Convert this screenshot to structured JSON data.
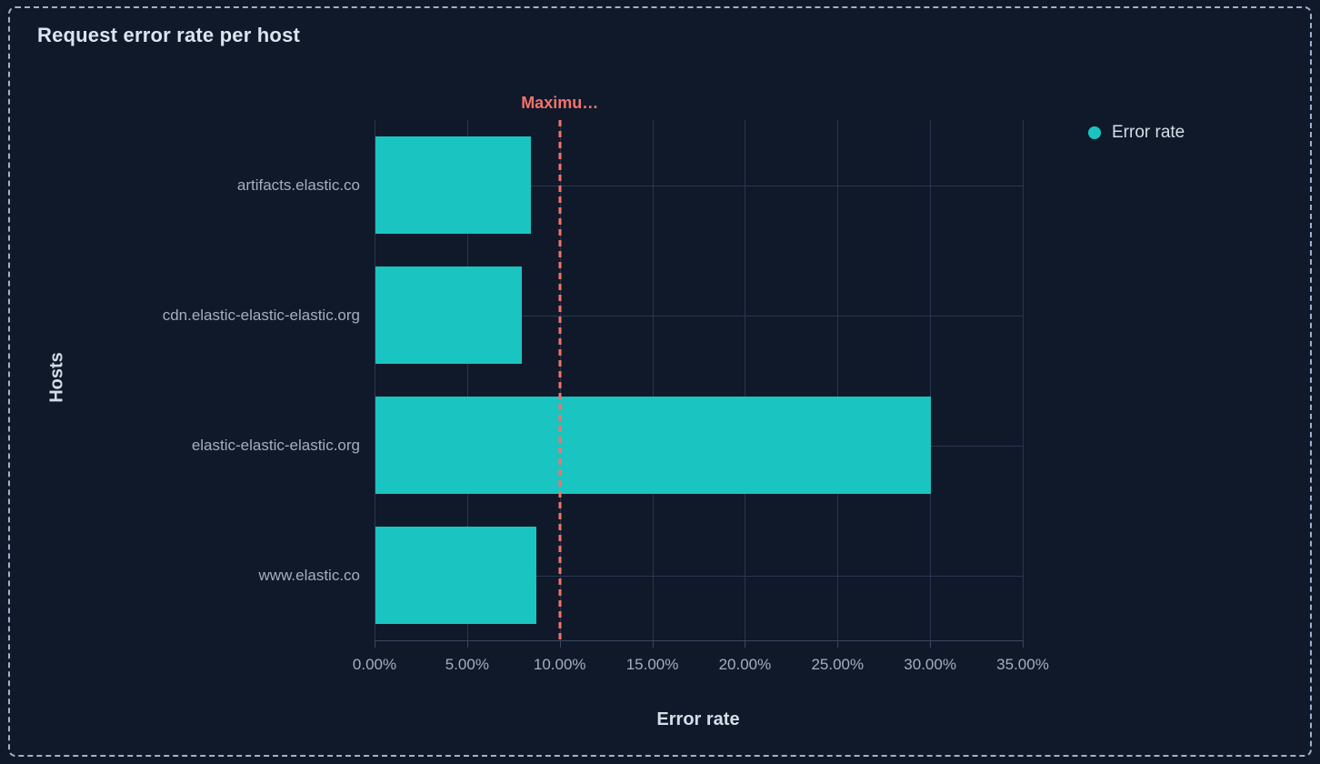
{
  "panel": {
    "title": "Request error rate per host"
  },
  "legend": {
    "items": [
      {
        "label": "Error rate",
        "color": "#1ac5c1"
      }
    ]
  },
  "colors": {
    "background": "#0f1929",
    "panel_border": "#9fb1cc",
    "bar": "#1ac5c1",
    "annotation": "#f4726b",
    "gridline": "#293650",
    "axis_line": "#3b475f",
    "title_text": "#dce4f1",
    "muted_text": "#a3aec2",
    "axis_title_text": "#d5dde9"
  },
  "chart_data": {
    "type": "bar",
    "orientation": "horizontal",
    "title": "Request error rate per host",
    "categories": [
      "artifacts.elastic.co",
      "cdn.elastic-elastic-elastic.org",
      "elastic-elastic-elastic.org",
      "www.elastic.co"
    ],
    "series": [
      {
        "name": "Error rate",
        "values": [
          8.4,
          7.9,
          30.0,
          8.7
        ],
        "unit": "%",
        "color": "#1ac5c1"
      }
    ],
    "xlabel": "Error rate",
    "ylabel": "Hosts",
    "xlim": [
      0,
      35
    ],
    "x_ticks": [
      "0.00%",
      "5.00%",
      "10.00%",
      "15.00%",
      "20.00%",
      "25.00%",
      "30.00%",
      "35.00%"
    ],
    "grid": true,
    "legend_position": "top-right",
    "annotation_line": {
      "label": "Maximu…",
      "x": 10,
      "style": "dashed",
      "color": "#f4726b"
    }
  }
}
